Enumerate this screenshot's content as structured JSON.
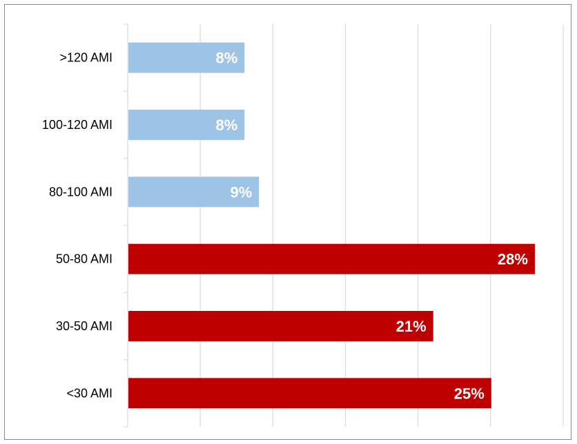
{
  "chart_data": {
    "type": "bar",
    "orientation": "horizontal",
    "categories": [
      ">120 AMI",
      "100-120 AMI",
      "80-100 AMI",
      "50-80 AMI",
      "30-50 AMI",
      "<30 AMI"
    ],
    "values": [
      8,
      8,
      9,
      28,
      21,
      25
    ],
    "value_labels": [
      "8%",
      "8%",
      "9%",
      "28%",
      "21%",
      "25%"
    ],
    "bar_colors": [
      "#9dc3e6",
      "#9dc3e6",
      "#9dc3e6",
      "#c00000",
      "#c00000",
      "#c00000"
    ],
    "xlim": [
      0,
      30
    ],
    "title": "",
    "xlabel": "",
    "ylabel": "",
    "grid": "vertical",
    "legend": "none"
  }
}
